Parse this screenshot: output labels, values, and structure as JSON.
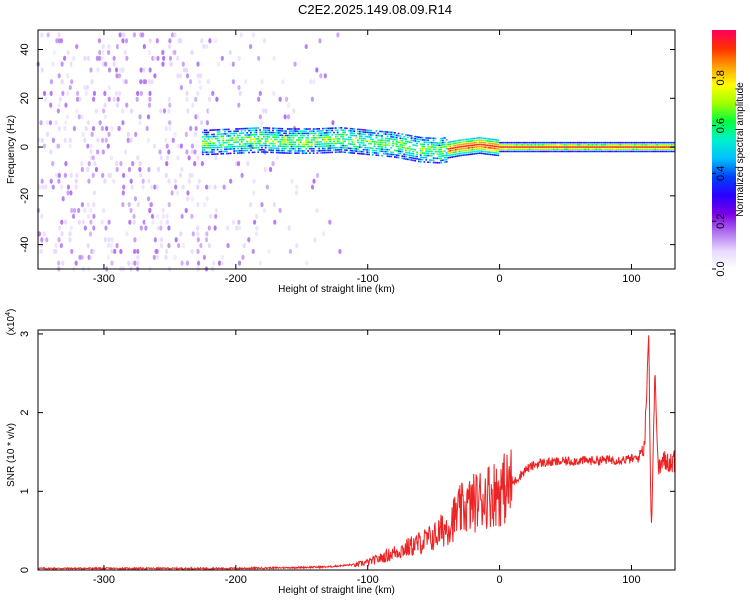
{
  "chart_data": [
    {
      "type": "heatmap",
      "title": "C2E2.2025.149.08.09.R14",
      "xlabel": "Height of straight line (km)",
      "ylabel": "Frequency (Hz)",
      "xlim": [
        -350,
        133
      ],
      "ylim": [
        -50,
        48
      ],
      "xticks": [
        -300,
        -200,
        -100,
        0,
        100
      ],
      "yticks": [
        -40,
        -20,
        0,
        20,
        40
      ],
      "colorbar": {
        "label": "Normalized spectral amplitude",
        "range": [
          0,
          1
        ],
        "ticks": [
          "0.0",
          "0.2",
          "0.4",
          "0.6",
          "0.8"
        ],
        "tick_values": [
          0.0,
          0.2,
          0.4,
          0.6,
          0.8
        ],
        "colors": [
          "#ffffff",
          "#e8d8ff",
          "#b070f0",
          "#7a00e6",
          "#2a00ff",
          "#0040ff",
          "#00c0ff",
          "#00f0d0",
          "#00ff40",
          "#a0ff00",
          "#ffff00",
          "#ffa000",
          "#ff3000",
          "#ff0060"
        ]
      },
      "ridge": {
        "x": [
          -220,
          -200,
          -180,
          -160,
          -140,
          -120,
          -100,
          -80,
          -60,
          -45,
          -30,
          -15,
          0,
          30,
          60,
          90,
          110,
          130
        ],
        "y": [
          2,
          2.5,
          3,
          2.5,
          2.5,
          3,
          2,
          1,
          -1,
          -1.5,
          0,
          1,
          0,
          0,
          0,
          0,
          0,
          0
        ]
      }
    },
    {
      "type": "line",
      "xlabel": "Height of straight line (km)",
      "ylabel": "SNR (10 * v/v)",
      "yscale_label": "(x10",
      "yscale_exponent": "4",
      "xlim": [
        -350,
        133
      ],
      "ylim": [
        0,
        3.05
      ],
      "xticks": [
        -300,
        -200,
        -100,
        0,
        100
      ],
      "yticks": [
        0,
        1,
        2,
        3
      ],
      "color": "#ee2222",
      "series": [
        {
          "x": [
            -350,
            -300,
            -250,
            -200,
            -160,
            -130,
            -110,
            -100,
            -90,
            -80,
            -70,
            -60,
            -50,
            -40,
            -30,
            -20,
            -10,
            0,
            10,
            20,
            30,
            40,
            50,
            60,
            70,
            80,
            90,
            100,
            105,
            110,
            113,
            115,
            118,
            120,
            125,
            133
          ],
          "y": [
            0.01,
            0.01,
            0.01,
            0.01,
            0.02,
            0.03,
            0.06,
            0.1,
            0.15,
            0.22,
            0.28,
            0.35,
            0.42,
            0.55,
            0.75,
            0.85,
            0.95,
            1.0,
            1.1,
            1.28,
            1.36,
            1.37,
            1.38,
            1.39,
            1.39,
            1.4,
            1.4,
            1.41,
            1.42,
            1.6,
            3.05,
            0.45,
            2.6,
            1.3,
            1.38,
            1.38
          ]
        }
      ]
    }
  ]
}
